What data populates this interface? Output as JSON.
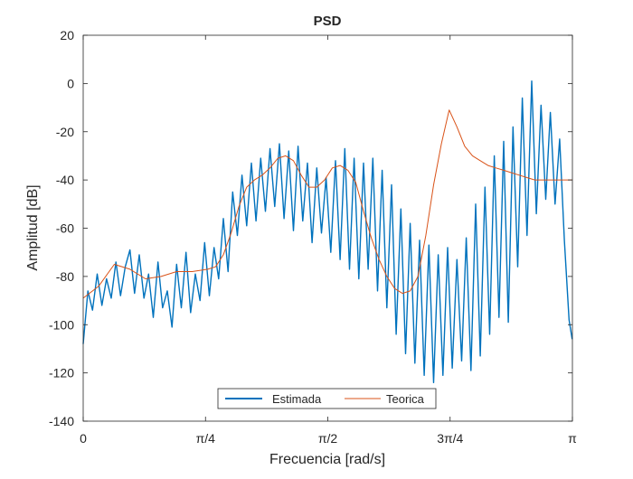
{
  "chart_data": {
    "type": "line",
    "title": "PSD",
    "xlabel": "Frecuencia [rad/s]",
    "ylabel": "Amplitud [dB]",
    "xlim": [
      0,
      3.14159
    ],
    "ylim": [
      -140,
      20
    ],
    "xticks": [
      0,
      0.7854,
      1.5708,
      2.3562,
      3.14159
    ],
    "xtick_labels": [
      "0",
      "π/4",
      "π/2",
      "3π/4",
      "π"
    ],
    "yticks": [
      20,
      0,
      -20,
      -40,
      -60,
      -80,
      -100,
      -120,
      -140
    ],
    "ytick_labels": [
      "20",
      "0",
      "-20",
      "-40",
      "-60",
      "-80",
      "-100",
      "-120",
      "-140"
    ],
    "grid": false,
    "legend": {
      "placement": "bottom-center",
      "orientation": "horizontal"
    },
    "series": [
      {
        "name": "Estimada",
        "color": "#0072BD",
        "x": [
          0,
          0.03,
          0.06,
          0.09,
          0.12,
          0.15,
          0.18,
          0.21,
          0.24,
          0.27,
          0.3,
          0.33,
          0.36,
          0.39,
          0.42,
          0.45,
          0.48,
          0.51,
          0.54,
          0.57,
          0.6,
          0.63,
          0.66,
          0.69,
          0.72,
          0.75,
          0.78,
          0.81,
          0.84,
          0.87,
          0.9,
          0.93,
          0.96,
          0.99,
          1.02,
          1.05,
          1.08,
          1.11,
          1.14,
          1.17,
          1.2,
          1.23,
          1.26,
          1.29,
          1.32,
          1.35,
          1.38,
          1.41,
          1.44,
          1.47,
          1.5,
          1.53,
          1.56,
          1.59,
          1.62,
          1.65,
          1.68,
          1.71,
          1.74,
          1.77,
          1.8,
          1.83,
          1.86,
          1.89,
          1.92,
          1.95,
          1.98,
          2.01,
          2.04,
          2.07,
          2.1,
          2.13,
          2.16,
          2.19,
          2.22,
          2.25,
          2.28,
          2.31,
          2.34,
          2.37,
          2.4,
          2.43,
          2.46,
          2.49,
          2.52,
          2.55,
          2.58,
          2.61,
          2.64,
          2.67,
          2.7,
          2.73,
          2.76,
          2.79,
          2.82,
          2.85,
          2.88,
          2.91,
          2.94,
          2.97,
          3.0,
          3.03,
          3.06,
          3.09,
          3.12,
          3.14
        ],
        "y": [
          -108,
          -86,
          -94,
          -79,
          -92,
          -81,
          -89,
          -74,
          -88,
          -76,
          -69,
          -87,
          -71,
          -89,
          -79,
          -97,
          -74,
          -93,
          -86,
          -101,
          -75,
          -93,
          -70,
          -95,
          -79,
          -90,
          -66,
          -88,
          -68,
          -81,
          -56,
          -78,
          -45,
          -63,
          -38,
          -59,
          -33,
          -57,
          -31,
          -53,
          -27,
          -51,
          -25,
          -56,
          -28,
          -61,
          -26,
          -57,
          -33,
          -66,
          -35,
          -62,
          -39,
          -70,
          -32,
          -73,
          -27,
          -77,
          -31,
          -81,
          -33,
          -77,
          -31,
          -86,
          -36,
          -93,
          -42,
          -104,
          -52,
          -112,
          -58,
          -116,
          -65,
          -121,
          -67,
          -124,
          -71,
          -121,
          -68,
          -118,
          -73,
          -115,
          -64,
          -119,
          -50,
          -113,
          -43,
          -104,
          -30,
          -97,
          -24,
          -99,
          -18,
          -76,
          -6,
          -63,
          1,
          -54,
          -9,
          -48,
          -12,
          -50,
          -23,
          -65,
          -98,
          -106
        ]
      },
      {
        "name": "Teorica",
        "color": "#D95319",
        "x": [
          0,
          0.1,
          0.2,
          0.3,
          0.4,
          0.5,
          0.6,
          0.7,
          0.8,
          0.85,
          0.9,
          0.95,
          1.0,
          1.05,
          1.1,
          1.15,
          1.2,
          1.25,
          1.3,
          1.35,
          1.4,
          1.45,
          1.5,
          1.55,
          1.6,
          1.65,
          1.7,
          1.75,
          1.8,
          1.85,
          1.9,
          1.95,
          2.0,
          2.05,
          2.1,
          2.15,
          2.2,
          2.25,
          2.3,
          2.35,
          2.4,
          2.45,
          2.5,
          2.55,
          2.6,
          2.65,
          2.7,
          2.75,
          2.8,
          2.85,
          2.9,
          2.95,
          3.0,
          3.05,
          3.1,
          3.14
        ],
        "y": [
          -89,
          -84,
          -75,
          -77,
          -81,
          -80,
          -78,
          -78,
          -77,
          -76,
          -71,
          -62,
          -51,
          -43,
          -40,
          -38,
          -35,
          -31,
          -30,
          -32,
          -38,
          -43,
          -43,
          -40,
          -35,
          -34,
          -36,
          -41,
          -53,
          -64,
          -73,
          -80,
          -85,
          -87,
          -86,
          -80,
          -63,
          -42,
          -25,
          -11,
          -18,
          -26,
          -30,
          -32,
          -34,
          -35,
          -36,
          -37,
          -38,
          -39,
          -40,
          -40,
          -40,
          -40,
          -40,
          -40
        ]
      }
    ]
  }
}
